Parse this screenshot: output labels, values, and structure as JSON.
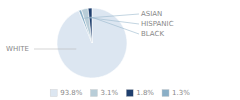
{
  "chart_data": {
    "type": "pie",
    "categories": [
      "WHITE",
      "ASIAN",
      "HISPANIC",
      "BLACK"
    ],
    "values": [
      93.8,
      1.3,
      3.1,
      1.8
    ],
    "value_labels": [
      "93.8%",
      "1.3%",
      "3.1%",
      "1.8%"
    ],
    "colors": [
      "#dce6f1",
      "#8aafc7",
      "#b8cdd8",
      "#1f3f6e"
    ],
    "legend": "bottom"
  }
}
